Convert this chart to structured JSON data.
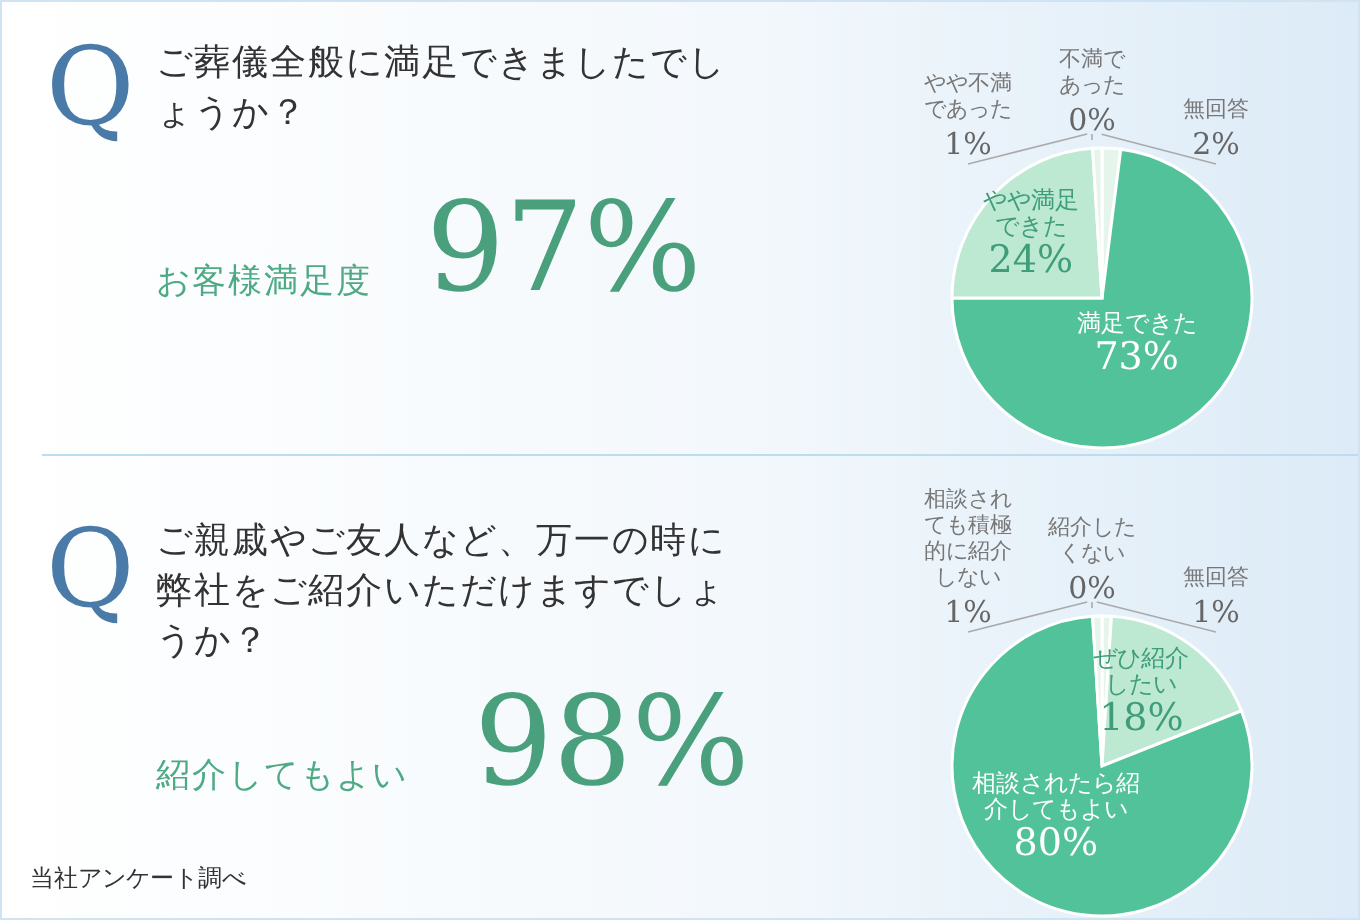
{
  "chart_data": [
    {
      "type": "pie",
      "title": "ご葬儀全般に満足できましたでしょうか？",
      "annotations": [
        "Q",
        "お客様満足度",
        "97%"
      ],
      "categories": [
        "無回答",
        "満足できた",
        "やや満足できた",
        "やや不満であった",
        "不満であった"
      ],
      "values": [
        2,
        73,
        24,
        1,
        0
      ],
      "colors": [
        "#e6f5ec",
        "#52c29a",
        "#bde8d2",
        "#e6f5ec",
        "#e6f5ec"
      ],
      "value_labels": [
        "2%",
        "73%",
        "24%",
        "1%",
        "0%"
      ]
    },
    {
      "type": "pie",
      "title": "ご親戚やご友人など、万一の時に弊社をご紹介いただけますでしょうか？",
      "annotations": [
        "Q",
        "紹介してもよい",
        "98%",
        "当社アンケート調べ"
      ],
      "categories": [
        "無回答",
        "ぜひ紹介したい",
        "相談されたら紹介してもよい",
        "相談されても積極的に紹介しない",
        "紹介したくない"
      ],
      "values": [
        1,
        18,
        80,
        1,
        0
      ],
      "colors": [
        "#e6f5ec",
        "#bde8d2",
        "#52c29a",
        "#e6f5ec",
        "#e6f5ec"
      ],
      "value_labels": [
        "1%",
        "18%",
        "80%",
        "1%",
        "0%"
      ]
    }
  ]
}
